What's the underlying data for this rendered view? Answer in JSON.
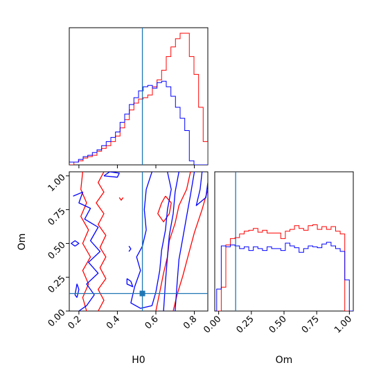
{
  "chart_data": {
    "type": "corner",
    "parameters": [
      "H0",
      "Om"
    ],
    "truth": {
      "H0": 0.53,
      "Om": 0.13
    },
    "colors": {
      "red": "#ff0000",
      "blue": "#0000ff",
      "truth": "#1f77b4"
    },
    "panels": [
      {
        "id": "hist_H0",
        "type": "step-histogram",
        "xlim": [
          0.15,
          0.87
        ],
        "x_ticks": [
          0.2,
          0.4,
          0.6,
          0.8
        ],
        "bins": [
          0.15,
          0.174,
          0.198,
          0.222,
          0.246,
          0.27,
          0.294,
          0.318,
          0.342,
          0.366,
          0.39,
          0.414,
          0.438,
          0.462,
          0.486,
          0.51,
          0.534,
          0.558,
          0.582,
          0.606,
          0.63,
          0.654,
          0.678,
          0.702,
          0.726,
          0.75,
          0.774,
          0.798,
          0.822,
          0.846,
          0.87
        ],
        "series": [
          {
            "color": "red",
            "counts": [
              0,
              2,
              3,
              5,
              6,
              7,
              10,
              12,
              14,
              17,
              21,
              27,
              33,
              40,
              45,
              48,
              49,
              51,
              57,
              62,
              69,
              79,
              86,
              92,
              96,
              96,
              79,
              66,
              42,
              17
            ]
          },
          {
            "color": "blue",
            "counts": [
              2,
              2,
              4,
              6,
              7,
              9,
              11,
              14,
              17,
              20,
              24,
              31,
              37,
              44,
              49,
              54,
              57,
              58,
              56,
              60,
              61,
              57,
              50,
              42,
              34,
              25,
              3,
              0,
              0,
              0
            ]
          }
        ]
      },
      {
        "id": "contour_H0_Om",
        "type": "contour",
        "xlabel": "H0",
        "ylabel": "Om",
        "xlim": [
          0.15,
          0.87
        ],
        "ylim": [
          0.0,
          1.03
        ],
        "x_ticks": [
          0.2,
          0.4,
          0.6,
          0.8
        ],
        "y_ticks": [
          0.0,
          0.25,
          0.5,
          0.75,
          1.0
        ],
        "x_tick_labels": [
          "0.2",
          "0.4",
          "0.6",
          "0.8"
        ],
        "y_tick_labels": [
          "0.00",
          "0.25",
          "0.50",
          "0.75",
          "1.00"
        ],
        "series": [
          {
            "color": "red",
            "contours": [
              [
                [
                  0.33,
                  1.03
                ],
                [
                  0.3,
                  0.95
                ],
                [
                  0.33,
                  0.88
                ],
                [
                  0.29,
                  0.8
                ],
                [
                  0.33,
                  0.72
                ],
                [
                  0.3,
                  0.64
                ],
                [
                  0.34,
                  0.56
                ],
                [
                  0.31,
                  0.47
                ],
                [
                  0.34,
                  0.4
                ],
                [
                  0.31,
                  0.32
                ],
                [
                  0.34,
                  0.24
                ],
                [
                  0.3,
                  0.16
                ],
                [
                  0.33,
                  0.08
                ],
                [
                  0.3,
                  0.0
                ]
              ],
              [
                [
                  0.22,
                  1.03
                ],
                [
                  0.21,
                  0.9
                ],
                [
                  0.24,
                  0.8
                ],
                [
                  0.21,
                  0.7
                ],
                [
                  0.25,
                  0.6
                ],
                [
                  0.22,
                  0.5
                ],
                [
                  0.26,
                  0.4
                ],
                [
                  0.22,
                  0.3
                ],
                [
                  0.25,
                  0.2
                ],
                [
                  0.22,
                  0.1
                ],
                [
                  0.24,
                  0.0
                ]
              ],
              [
                [
                  0.78,
                  1.03
                ],
                [
                  0.76,
                  0.9
                ],
                [
                  0.72,
                  0.78
                ],
                [
                  0.7,
                  0.65
                ],
                [
                  0.67,
                  0.52
                ],
                [
                  0.66,
                  0.4
                ],
                [
                  0.64,
                  0.28
                ],
                [
                  0.62,
                  0.14
                ],
                [
                  0.6,
                  0.0
                ]
              ],
              [
                [
                  0.87,
                  0.9
                ],
                [
                  0.84,
                  0.75
                ],
                [
                  0.8,
                  0.58
                ],
                [
                  0.77,
                  0.42
                ],
                [
                  0.74,
                  0.26
                ],
                [
                  0.71,
                  0.12
                ],
                [
                  0.69,
                  0.0
                ]
              ],
              [
                [
                  0.65,
                  0.85
                ],
                [
                  0.63,
                  0.8
                ],
                [
                  0.61,
                  0.72
                ],
                [
                  0.64,
                  0.66
                ],
                [
                  0.67,
                  0.72
                ],
                [
                  0.68,
                  0.8
                ],
                [
                  0.65,
                  0.85
                ]
              ],
              [
                [
                  0.41,
                  0.84
                ],
                [
                  0.42,
                  0.82
                ],
                [
                  0.43,
                  0.84
                ]
              ]
            ]
          },
          {
            "color": "blue",
            "contours": [
              [
                [
                  0.33,
                  1.0
                ],
                [
                  0.4,
                  0.99
                ],
                [
                  0.41,
                  1.02
                ],
                [
                  0.36,
                  1.03
                ],
                [
                  0.33,
                  1.0
                ]
              ],
              [
                [
                  0.17,
                  0.85
                ],
                [
                  0.22,
                  0.88
                ],
                [
                  0.2,
                  0.8
                ],
                [
                  0.26,
                  0.76
                ],
                [
                  0.23,
                  0.68
                ],
                [
                  0.3,
                  0.62
                ],
                [
                  0.26,
                  0.52
                ],
                [
                  0.31,
                  0.44
                ],
                [
                  0.25,
                  0.36
                ],
                [
                  0.3,
                  0.28
                ],
                [
                  0.24,
                  0.2
                ],
                [
                  0.28,
                  0.12
                ],
                [
                  0.24,
                  0.04
                ],
                [
                  0.2,
                  0.0
                ]
              ],
              [
                [
                  0.58,
                  1.03
                ],
                [
                  0.55,
                  0.9
                ],
                [
                  0.54,
                  0.75
                ],
                [
                  0.55,
                  0.6
                ],
                [
                  0.53,
                  0.48
                ],
                [
                  0.5,
                  0.4
                ],
                [
                  0.52,
                  0.3
                ],
                [
                  0.49,
                  0.18
                ],
                [
                  0.47,
                  0.06
                ],
                [
                  0.52,
                  0.02
                ],
                [
                  0.58,
                  0.04
                ],
                [
                  0.6,
                  0.14
                ],
                [
                  0.62,
                  0.3
                ],
                [
                  0.63,
                  0.45
                ],
                [
                  0.65,
                  0.6
                ],
                [
                  0.66,
                  0.75
                ],
                [
                  0.68,
                  0.9
                ],
                [
                  0.66,
                  1.03
                ]
              ],
              [
                [
                  0.72,
                  1.03
                ],
                [
                  0.7,
                  0.88
                ],
                [
                  0.69,
                  0.72
                ],
                [
                  0.67,
                  0.56
                ],
                [
                  0.66,
                  0.4
                ],
                [
                  0.65,
                  0.22
                ],
                [
                  0.64,
                  0.0
                ]
              ],
              [
                [
                  0.8,
                  1.03
                ],
                [
                  0.78,
                  0.86
                ],
                [
                  0.76,
                  0.7
                ],
                [
                  0.74,
                  0.54
                ],
                [
                  0.72,
                  0.38
                ],
                [
                  0.71,
                  0.2
                ],
                [
                  0.7,
                  0.0
                ]
              ],
              [
                [
                  0.84,
                  1.03
                ],
                [
                  0.83,
                  0.9
                ],
                [
                  0.81,
                  0.78
                ],
                [
                  0.86,
                  0.84
                ],
                [
                  0.87,
                  0.95
                ]
              ],
              [
                [
                  0.18,
                  0.48
                ],
                [
                  0.2,
                  0.5
                ],
                [
                  0.18,
                  0.52
                ],
                [
                  0.16,
                  0.5
                ],
                [
                  0.18,
                  0.48
                ]
              ],
              [
                [
                  0.19,
                  0.1
                ],
                [
                  0.2,
                  0.16
                ],
                [
                  0.19,
                  0.2
                ],
                [
                  0.18,
                  0.12
                ],
                [
                  0.19,
                  0.1
                ]
              ],
              [
                [
                  0.45,
                  0.24
                ],
                [
                  0.47,
                  0.22
                ],
                [
                  0.48,
                  0.18
                ],
                [
                  0.45,
                  0.2
                ],
                [
                  0.45,
                  0.24
                ]
              ],
              [
                [
                  0.46,
                  0.48
                ],
                [
                  0.47,
                  0.46
                ],
                [
                  0.46,
                  0.44
                ]
              ]
            ]
          }
        ]
      },
      {
        "id": "hist_Om",
        "type": "step-histogram",
        "xlabel": "Om",
        "xlim": [
          -0.03,
          1.03
        ],
        "x_ticks": [
          0.0,
          0.25,
          0.5,
          0.75,
          1.0
        ],
        "x_tick_labels": [
          "0.00",
          "0.25",
          "0.50",
          "0.75",
          "1.00"
        ],
        "bins": [
          -0.015,
          0.02,
          0.055,
          0.09,
          0.125,
          0.16,
          0.195,
          0.23,
          0.265,
          0.3,
          0.335,
          0.37,
          0.405,
          0.44,
          0.475,
          0.51,
          0.545,
          0.58,
          0.615,
          0.65,
          0.685,
          0.72,
          0.755,
          0.79,
          0.825,
          0.86,
          0.895,
          0.93,
          0.965,
          1.0,
          1.035
        ],
        "series": [
          {
            "color": "red",
            "counts": [
              0,
              26,
              72,
              79,
              80,
              84,
              87,
              88,
              90,
              86,
              88,
              85,
              85,
              85,
              79,
              87,
              89,
              93,
              90,
              88,
              93,
              94,
              89,
              92,
              89,
              92,
              87,
              84,
              0,
              0
            ]
          },
          {
            "color": "blue",
            "counts": [
              24,
              71,
              70,
              72,
              71,
              68,
              70,
              66,
              70,
              68,
              66,
              70,
              68,
              68,
              66,
              74,
              71,
              69,
              64,
              68,
              71,
              70,
              69,
              73,
              75,
              71,
              68,
              65,
              34,
              0
            ]
          }
        ]
      }
    ]
  }
}
